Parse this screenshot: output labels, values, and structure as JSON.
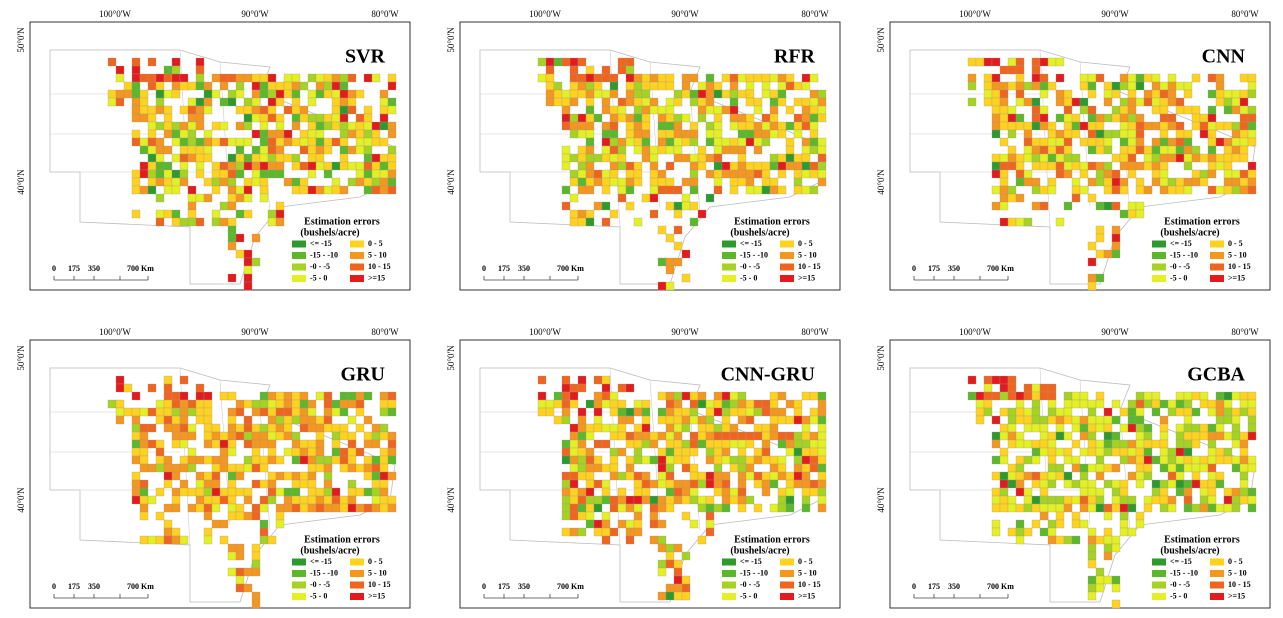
{
  "panels": [
    {
      "title": "SVR"
    },
    {
      "title": "RFR"
    },
    {
      "title": "CNN"
    },
    {
      "title": "GRU"
    },
    {
      "title": "CNN-GRU"
    },
    {
      "title": "GCBA"
    }
  ],
  "axes": {
    "longitudes": [
      "100°0'W",
      "90°0'W",
      "80°0'W"
    ],
    "latitudes": [
      "50°0'N",
      "40°0'N"
    ]
  },
  "legend": {
    "title": "Estimation errors",
    "subtitle": "(bushels/acre)",
    "items": [
      {
        "label": "<= -15",
        "color": "#2e9a2e"
      },
      {
        "label": "-15 - -10",
        "color": "#5cb82a"
      },
      {
        "label": "-0 - -5",
        "color": "#a6d222"
      },
      {
        "label": "-5 - 0",
        "color": "#e4f024"
      },
      {
        "label": "0 - 5",
        "color": "#ffd21e"
      },
      {
        "label": "5 - 10",
        "color": "#f5961e"
      },
      {
        "label": "10 - 15",
        "color": "#f0641e"
      },
      {
        "label": ">=15",
        "color": "#e41a1c"
      }
    ]
  },
  "scale_bar": {
    "labels": [
      "0",
      "175",
      "350",
      "700 Km"
    ]
  }
}
